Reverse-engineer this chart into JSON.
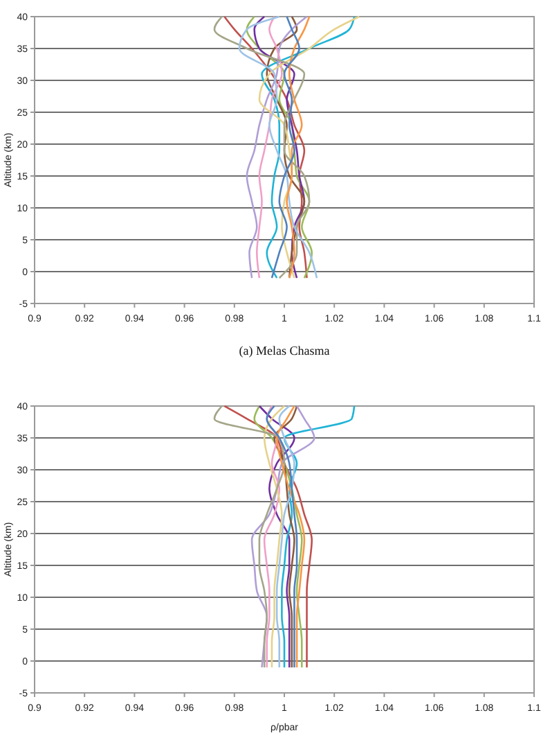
{
  "chart_data": [
    {
      "type": "line",
      "ylabel": "Altitude (km)",
      "annotations": [
        "(a) Melas Chasma"
      ],
      "xlim": [
        0.9,
        1.1
      ],
      "xticks": [
        0.9,
        0.92,
        0.94,
        0.96,
        0.98,
        1,
        1.02,
        1.04,
        1.06,
        1.08,
        1.1
      ],
      "ylim": [
        -5,
        40
      ],
      "yticks": [
        -5,
        0,
        5,
        10,
        15,
        20,
        25,
        30,
        35,
        40
      ],
      "grid": "y",
      "marker": "none",
      "line_style": "solid",
      "series": [
        {
          "color": "#c0504d",
          "x": [
            1.009,
            1.008,
            1.006,
            1.007,
            1.006,
            1.008,
            1.004,
            1.001,
            0.995,
            0.987,
            0.98,
            0.976
          ],
          "values": [
            -1,
            3,
            7,
            11,
            15,
            19,
            23,
            27,
            31,
            35,
            38,
            40
          ]
        },
        {
          "color": "#9bbb59",
          "x": [
            1.008,
            1.011,
            1.007,
            1.01,
            1.005,
            1.004,
            1.003,
            0.998,
            1.0,
            0.99,
            0.985,
            0.988
          ],
          "values": [
            -1,
            3,
            7,
            11,
            15,
            19,
            23,
            27,
            31,
            35,
            38,
            40
          ]
        },
        {
          "color": "#7030a0",
          "x": [
            1.005,
            1.003,
            1.004,
            1.008,
            1.006,
            1.005,
            1.003,
            1.001,
            1.004,
            0.99,
            0.988,
            0.992
          ],
          "values": [
            -1,
            3,
            7,
            11,
            15,
            19,
            23,
            27,
            31,
            35,
            38,
            40
          ]
        },
        {
          "color": "#1fb3d6",
          "x": [
            0.997,
            0.993,
            0.997,
            0.995,
            0.996,
            0.998,
            0.998,
            0.996,
            0.991,
            1.01,
            1.026,
            1.028
          ],
          "values": [
            -1,
            3,
            7,
            11,
            15,
            19,
            23,
            27,
            31,
            35,
            38,
            40
          ]
        },
        {
          "color": "#8b5a3c",
          "x": [
            1.002,
            1.003,
            1.005,
            1.008,
            1.002,
            1.0,
            1.001,
            0.997,
            0.993,
            0.996,
            1.005,
            1.003
          ],
          "values": [
            -1,
            3,
            7,
            11,
            15,
            19,
            23,
            27,
            31,
            35,
            38,
            40
          ]
        },
        {
          "color": "#b09ed6",
          "x": [
            0.987,
            0.986,
            0.989,
            0.987,
            0.985,
            0.988,
            0.99,
            0.993,
            0.997,
            0.998,
            1.003,
            1.009
          ],
          "values": [
            -1,
            3,
            7,
            11,
            15,
            19,
            23,
            27,
            31,
            35,
            38,
            40
          ]
        },
        {
          "color": "#f0a0c8",
          "x": [
            0.99,
            0.989,
            0.99,
            0.991,
            0.99,
            0.992,
            0.994,
            0.995,
            0.999,
            0.997,
            0.994,
            0.996
          ],
          "values": [
            -1,
            3,
            7,
            11,
            15,
            19,
            23,
            27,
            31,
            35,
            38,
            40
          ]
        },
        {
          "color": "#e6d28a",
          "x": [
            1.004,
            1.001,
            0.999,
            1.0,
            1.003,
            1.002,
            1.0,
            0.99,
            0.994,
            1.01,
            1.02,
            1.03
          ],
          "values": [
            -1,
            3,
            7,
            11,
            15,
            19,
            23,
            27,
            31,
            35,
            38,
            40
          ]
        },
        {
          "color": "#a5a58a",
          "x": [
            0.998,
            1.005,
            1.005,
            1.01,
            1.008,
            1.0,
            1.0,
            1.004,
            1.008,
            0.985,
            0.972,
            0.975
          ],
          "values": [
            -1,
            3,
            7,
            11,
            15,
            19,
            23,
            27,
            31,
            35,
            38,
            40
          ]
        },
        {
          "color": "#9dc3e6",
          "x": [
            1.013,
            1.01,
            1.004,
            1.002,
            1.001,
            0.997,
            0.994,
            0.997,
            0.996,
            0.982,
            0.985,
            0.998
          ],
          "values": [
            -1,
            3,
            7,
            11,
            15,
            19,
            23,
            27,
            31,
            35,
            38,
            40
          ]
        },
        {
          "color": "#f79646",
          "x": [
            1.002,
            1.004,
            1.003,
            1.001,
            1.003,
            1.003,
            1.007,
            1.004,
            1.002,
            1.004,
            1.008,
            1.01
          ],
          "values": [
            -1,
            3,
            7,
            11,
            15,
            19,
            23,
            27,
            31,
            35,
            38,
            40
          ]
        },
        {
          "color": "#4f81bd",
          "x": [
            0.995,
            0.998,
            1.001,
            0.998,
            1.0,
            1.004,
            1.002,
            1.003,
            1.0,
            1.006,
            1.003,
            1.001
          ],
          "values": [
            -1,
            3,
            7,
            11,
            15,
            19,
            23,
            27,
            31,
            35,
            38,
            40
          ]
        }
      ]
    },
    {
      "type": "line",
      "ylabel": "Altitude (km)",
      "xlabel": "ρ/pbar",
      "xlim": [
        0.9,
        1.1
      ],
      "xticks": [
        0.9,
        0.92,
        0.94,
        0.96,
        0.98,
        1,
        1.02,
        1.04,
        1.06,
        1.08,
        1.1
      ],
      "ylim": [
        -5,
        40
      ],
      "yticks": [
        -5,
        0,
        5,
        10,
        15,
        20,
        25,
        30,
        35,
        40
      ],
      "grid": "y",
      "marker": "none",
      "line_style": "solid",
      "series": [
        {
          "color": "#c0504d",
          "x": [
            1.009,
            1.009,
            1.009,
            1.009,
            1.01,
            1.011,
            1.008,
            1.005,
            1.0,
            0.997,
            0.985,
            0.976
          ],
          "values": [
            -1,
            3,
            7,
            11,
            15,
            19,
            23,
            27,
            31,
            35,
            38,
            40
          ]
        },
        {
          "color": "#9bbb59",
          "x": [
            1.007,
            1.007,
            1.006,
            1.005,
            1.006,
            1.007,
            1.005,
            1.003,
            1.0,
            0.995,
            0.988,
            0.99
          ],
          "values": [
            -1,
            3,
            7,
            11,
            15,
            19,
            23,
            27,
            31,
            35,
            38,
            40
          ]
        },
        {
          "color": "#7030a0",
          "x": [
            1.002,
            1.002,
            1.002,
            1.001,
            1.002,
            1.002,
            0.997,
            0.994,
            0.997,
            1.004,
            0.995,
            0.99
          ],
          "values": [
            -1,
            3,
            7,
            11,
            15,
            19,
            23,
            27,
            31,
            35,
            38,
            40
          ]
        },
        {
          "color": "#1fb3d6",
          "x": [
            1.0,
            1.0,
            0.999,
            0.999,
            1.0,
            1.001,
            1.003,
            1.002,
            1.005,
            1.0,
            1.027,
            1.028
          ],
          "values": [
            -1,
            3,
            7,
            11,
            15,
            19,
            23,
            27,
            31,
            35,
            38,
            40
          ]
        },
        {
          "color": "#8b5a3c",
          "x": [
            1.003,
            1.003,
            1.003,
            1.002,
            1.003,
            1.004,
            1.002,
            1.001,
            1.0,
            0.996,
            1.003,
            1.005
          ],
          "values": [
            -1,
            3,
            7,
            11,
            15,
            19,
            23,
            27,
            31,
            35,
            38,
            40
          ]
        },
        {
          "color": "#b09ed6",
          "x": [
            0.991,
            0.992,
            0.993,
            0.989,
            0.988,
            0.987,
            0.994,
            0.997,
            0.999,
            1.012,
            1.008,
            1.005
          ],
          "values": [
            -1,
            3,
            7,
            11,
            15,
            19,
            23,
            27,
            31,
            35,
            38,
            40
          ]
        },
        {
          "color": "#f0a0c8",
          "x": [
            0.993,
            0.993,
            0.994,
            0.994,
            0.993,
            0.992,
            0.996,
            0.998,
            0.995,
            0.997,
            0.993,
            0.995
          ],
          "values": [
            -1,
            3,
            7,
            11,
            15,
            19,
            23,
            27,
            31,
            35,
            38,
            40
          ]
        },
        {
          "color": "#e6d28a",
          "x": [
            0.995,
            0.995,
            0.996,
            0.996,
            0.997,
            0.998,
            0.999,
            0.997,
            0.994,
            0.992,
            0.995,
            1.0
          ],
          "values": [
            -1,
            3,
            7,
            11,
            15,
            19,
            23,
            27,
            31,
            35,
            38,
            40
          ]
        },
        {
          "color": "#a5a58a",
          "x": [
            0.992,
            0.992,
            0.993,
            0.992,
            0.99,
            0.99,
            0.993,
            0.997,
            1.0,
            0.998,
            0.972,
            0.975
          ],
          "values": [
            -1,
            3,
            7,
            11,
            15,
            19,
            23,
            27,
            31,
            35,
            38,
            40
          ]
        },
        {
          "color": "#9dc3e6",
          "x": [
            0.998,
            0.998,
            0.997,
            0.997,
            0.998,
            0.999,
            1.0,
            1.003,
            1.004,
            1.0,
            0.998,
            1.002
          ],
          "values": [
            -1,
            3,
            7,
            11,
            15,
            19,
            23,
            27,
            31,
            35,
            38,
            40
          ]
        },
        {
          "color": "#f79646",
          "x": [
            1.005,
            1.005,
            1.005,
            1.006,
            1.007,
            1.008,
            1.006,
            1.002,
            0.999,
            0.997,
            1.001,
            1.004
          ],
          "values": [
            -1,
            3,
            7,
            11,
            15,
            19,
            23,
            27,
            31,
            35,
            38,
            40
          ]
        },
        {
          "color": "#4f81bd",
          "x": [
            1.004,
            1.004,
            1.004,
            1.004,
            1.005,
            1.005,
            1.004,
            1.003,
            1.002,
            0.998,
            0.993,
            0.996
          ],
          "values": [
            -1,
            3,
            7,
            11,
            15,
            19,
            23,
            27,
            31,
            35,
            38,
            40
          ]
        }
      ]
    }
  ]
}
